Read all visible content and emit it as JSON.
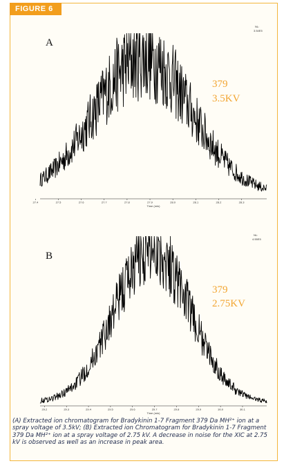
{
  "figure_label": "FIGURE 6",
  "caption": "(A) Extracted ion chromatogram for Bradykinin 1-7 Fragment 379 Da MH²⁺ ion at a spray voltage of 3.5kV; (B) Extracted ion Chromatogram for Bradykinin 1-7 Fragment 379 Da MH²⁺ ion at a spray voltage of 2.75 kV. A decrease in noise for the XIC at 2.75 kV is observed as well as an increase in peak area.",
  "colors": {
    "accent": "#f29e1d",
    "annotation": "#f2a531",
    "trace": "#000000"
  },
  "chart_data": [
    {
      "type": "line",
      "panel": "A",
      "nl_label": "NL:",
      "nl_value": "3.54E5",
      "annotation_mass": "379",
      "annotation_voltage": "3.5KV",
      "xlabel": "Time (min)",
      "ylabel": "",
      "xlim": [
        27.42,
        28.41
      ],
      "ylim": [
        0,
        100
      ],
      "x_ticks": [
        27.4,
        27.5,
        27.6,
        27.7,
        27.8,
        27.9,
        28.0,
        28.1,
        28.2,
        28.3
      ],
      "tick_labels": [
        "27.4",
        "27.5",
        "27.6",
        "27.7",
        "27.8",
        "27.9",
        "28.0",
        "28.1",
        "28.2",
        "28.3"
      ],
      "peak": {
        "center": 27.87,
        "width": 0.21,
        "height": 82,
        "noise": 0.3,
        "baseline": 3
      },
      "series": [
        {
          "values_note": "noisy XIC trace"
        }
      ]
    },
    {
      "type": "line",
      "panel": "B",
      "nl_label": "NL:",
      "nl_value": "4.55E5",
      "annotation_mass": "379",
      "annotation_voltage": "2.75KV",
      "xlabel": "Time (min)",
      "ylabel": "",
      "xlim": [
        29.18,
        30.21
      ],
      "ylim": [
        0,
        100
      ],
      "x_ticks": [
        29.2,
        29.3,
        29.4,
        29.5,
        29.6,
        29.7,
        29.8,
        29.9,
        30.0,
        30.1
      ],
      "tick_labels": [
        "29.2",
        "29.3",
        "29.4",
        "29.5",
        "29.6",
        "29.7",
        "29.8",
        "29.9",
        "30.0",
        "30.1"
      ],
      "peak": {
        "center": 29.69,
        "width": 0.17,
        "height": 90,
        "noise": 0.22,
        "baseline": 2
      },
      "series": [
        {
          "values_note": "noisy XIC trace"
        }
      ]
    }
  ]
}
